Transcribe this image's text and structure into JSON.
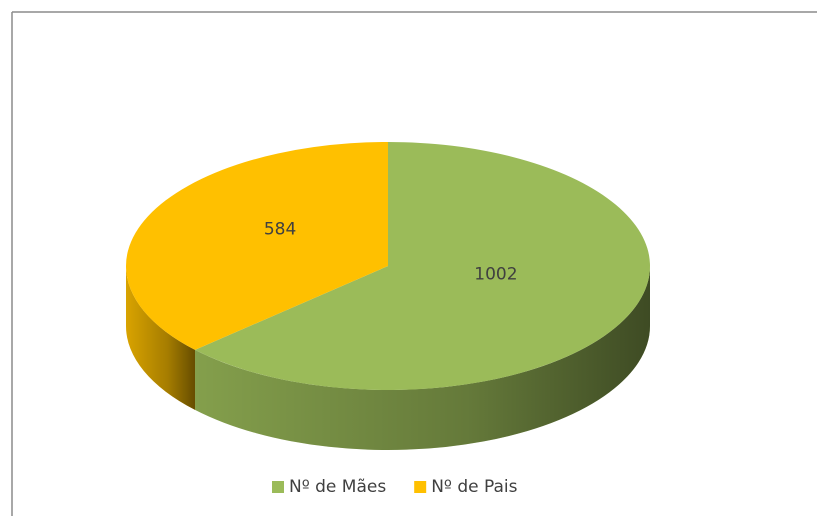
{
  "chart_data": {
    "type": "pie",
    "categories": [
      "Nº de Mães",
      "Nº de Pais"
    ],
    "values": [
      1002,
      584
    ],
    "colors": [
      "#9bbb59",
      "#ffc000"
    ],
    "legend": "bottom"
  }
}
